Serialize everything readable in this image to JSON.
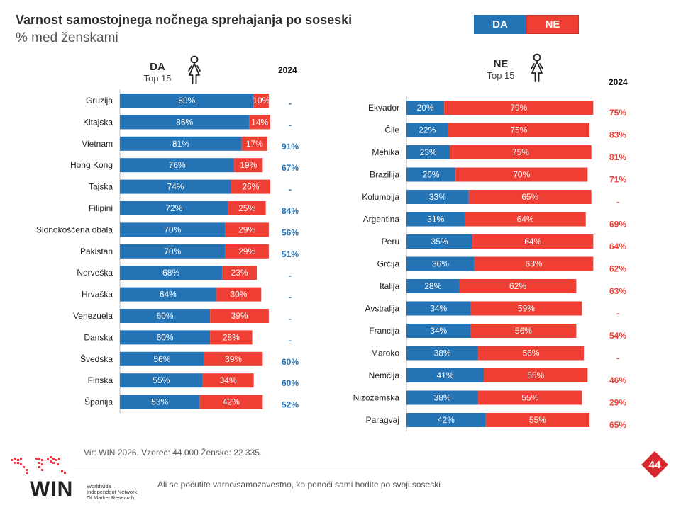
{
  "title": "Varnost samostojnega  nočnega sprehajanja  po soseski",
  "subtitle": "% med ženskami",
  "legend": {
    "da": "DA",
    "ne": "NE"
  },
  "colors": {
    "da": "#2473b5",
    "ne": "#ef3e33",
    "axis": "#bfbfbf"
  },
  "panels": {
    "da": {
      "heading": "DA",
      "subheading": "Top 15",
      "year_label": "2024"
    },
    "ne": {
      "heading": "NE",
      "subheading": "Top 15",
      "year_label": "2024"
    }
  },
  "chart_data": [
    {
      "type": "bar",
      "orientation": "horizontal",
      "stacked": true,
      "title": "DA",
      "subtitle": "Top 15",
      "categories": [
        "Gruzija",
        "Kitajska",
        "Vietnam",
        "Hong Kong",
        "Tajska",
        "Filipini",
        "Slonokoščena obala",
        "Pakistan",
        "Norveška",
        "Hrvaška",
        "Venezuela",
        "Danska",
        "Švedska",
        "Finska",
        "Španija"
      ],
      "series": [
        {
          "name": "DA",
          "values": [
            89,
            86,
            81,
            76,
            74,
            72,
            70,
            70,
            68,
            64,
            60,
            60,
            56,
            55,
            53
          ]
        },
        {
          "name": "NE",
          "values": [
            10,
            14,
            17,
            19,
            26,
            25,
            29,
            29,
            23,
            30,
            39,
            28,
            39,
            34,
            42
          ]
        }
      ],
      "compare_label": "2024",
      "compare_values": [
        "-",
        "-",
        "91%",
        "67%",
        "-",
        "84%",
        "56%",
        "51%",
        "-",
        "-",
        "-",
        "-",
        "60%",
        "60%",
        "52%"
      ],
      "xlim": [
        0,
        100
      ]
    },
    {
      "type": "bar",
      "orientation": "horizontal",
      "stacked": true,
      "title": "NE",
      "subtitle": "Top 15",
      "categories": [
        "Ekvador",
        "Čile",
        "Mehika",
        "Brazilija",
        "Kolumbija",
        "Argentina",
        "Peru",
        "Grčija",
        "Italija",
        "Avstralija",
        "Francija",
        "Maroko",
        "Nemčija",
        "Nizozemska",
        "Paragvaj"
      ],
      "series": [
        {
          "name": "DA",
          "values": [
            20,
            22,
            23,
            26,
            33,
            31,
            35,
            36,
            28,
            34,
            34,
            38,
            41,
            38,
            42
          ]
        },
        {
          "name": "NE",
          "values": [
            79,
            75,
            75,
            70,
            65,
            64,
            64,
            63,
            62,
            59,
            56,
            56,
            55,
            55,
            55
          ]
        }
      ],
      "compare_label": "2024",
      "compare_values": [
        "75%",
        "83%",
        "81%",
        "71%",
        "-",
        "69%",
        "64%",
        "62%",
        "63%",
        "-",
        "54%",
        "-",
        "46%",
        "29%",
        "65%"
      ],
      "xlim": [
        0,
        100
      ]
    }
  ],
  "footer": {
    "source": "Vir: WIN 2026.  Vzorec: 44.000  Ženske: 22.335.",
    "question": "Ali se počutite varno/samozavestno, ko ponoči sami hodite po svoji soseski",
    "page_number": "44",
    "logo_text": "WIN",
    "logo_tagline": [
      "Worldwide",
      "Independent Network",
      "Of Market Research"
    ]
  }
}
